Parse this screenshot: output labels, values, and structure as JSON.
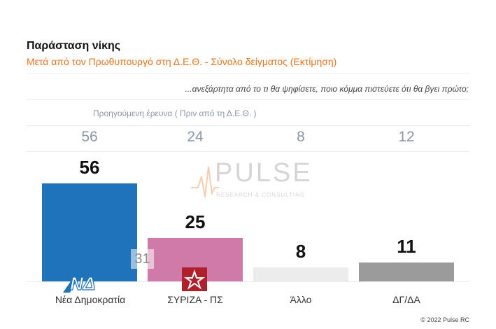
{
  "chart_data": {
    "type": "bar",
    "title": "Παράσταση νίκης",
    "subtitle": "Μετά από τον Πρωθυπουργό στη Δ.Ε.Θ.  -  Σύνολο δείγματος   (Εκτίμηση)",
    "question": "...ανεξάρτητα από το τι θα ψηφίσετε, ποιο κόμμα πιστεύετε ότι θα βγει πρώτο;",
    "previous_label": "Προηγούμενη έρευνα  (  Πριν από τη Δ.Ε.Θ. )",
    "categories": [
      "Νέα Δημοκρατία",
      "ΣΥΡΙΖΑ - ΠΣ",
      "Άλλο",
      "ΔΓ/ΔΑ"
    ],
    "values": [
      56,
      25,
      8,
      11
    ],
    "previous_values": [
      "56",
      "24",
      "8",
      "12"
    ],
    "value_labels": [
      "56",
      "25",
      "8",
      "11"
    ],
    "bar_colors": [
      "#1f74b9",
      "#cf7aa8",
      "#ececec",
      "#9b9b9b"
    ],
    "annotation": "31",
    "ylim": [
      0,
      56
    ]
  },
  "logos": {
    "nd_text": "ΝΔ",
    "watermark_text": "PULSE",
    "watermark_sub": "RESEARCH & CONSULTING"
  },
  "footer": "© 2022 Pulse RC"
}
